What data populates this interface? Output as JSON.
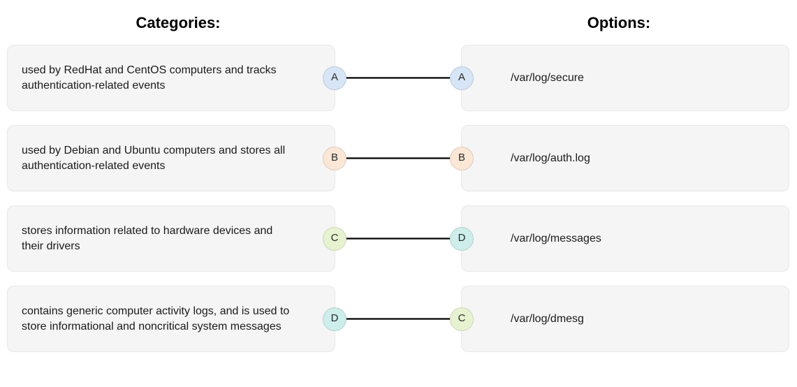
{
  "headers": {
    "left": "Categories:",
    "right": "Options:"
  },
  "categories": [
    {
      "id": "A",
      "text": "used by RedHat and CentOS computers and tracks authentication-related events"
    },
    {
      "id": "B",
      "text": "used by Debian and Ubuntu computers and stores all authentication-related events"
    },
    {
      "id": "C",
      "text": "stores information related to hardware devices and their drivers"
    },
    {
      "id": "D",
      "text": "contains generic computer activity logs, and is used to store informational and noncritical system messages"
    }
  ],
  "options": [
    {
      "id": "A",
      "text": "/var/log/secure"
    },
    {
      "id": "B",
      "text": "/var/log/auth.log"
    },
    {
      "id": "D",
      "text": "/var/log/messages"
    },
    {
      "id": "C",
      "text": "/var/log/dmesg"
    }
  ],
  "connections": [
    {
      "from": "A",
      "to": "A"
    },
    {
      "from": "B",
      "to": "B"
    },
    {
      "from": "C",
      "to": "D"
    },
    {
      "from": "D",
      "to": "C"
    }
  ],
  "badge_colors": {
    "A": "#d6e6f7",
    "B": "#fbe7d6",
    "C": "#e7f3d0",
    "D": "#cdeeea"
  },
  "style": {
    "card_bg": "#f5f5f5",
    "card_border": "#e8e8e8",
    "line_color": "#000000",
    "line_width": 2.2
  }
}
